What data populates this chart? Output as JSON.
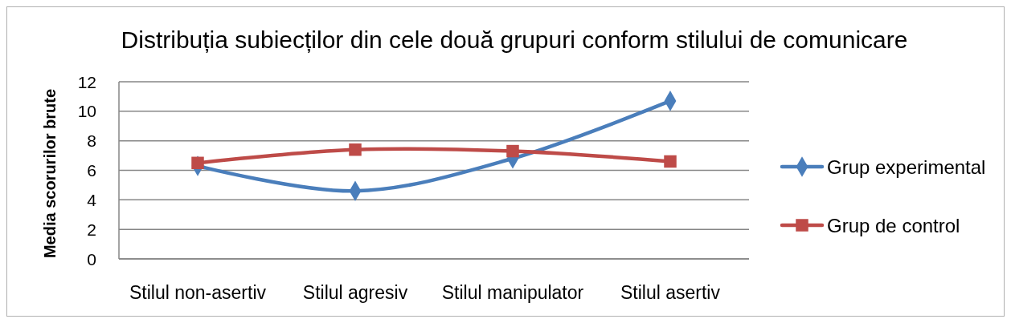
{
  "chart_data": {
    "type": "line",
    "title": "Distribuția subiecților din cele două grupuri conform stilului de comunicare",
    "ylabel": "Media scorurilor brute",
    "categories": [
      "Stilul non-asertiv",
      "Stilul agresiv",
      "Stilul manipulator",
      "Stilul asertiv"
    ],
    "series": [
      {
        "name": "Grup experimental",
        "color": "#4a7ebb",
        "marker": "diamond",
        "values": [
          6.3,
          4.6,
          6.8,
          10.7
        ]
      },
      {
        "name": "Grup de control",
        "color": "#be4b48",
        "marker": "square",
        "values": [
          6.5,
          7.4,
          7.3,
          6.6
        ]
      }
    ],
    "ylim": [
      0,
      12
    ],
    "yticks": [
      0,
      2,
      4,
      6,
      8,
      10,
      12
    ],
    "grid": "y",
    "legend": "right",
    "line_style": "solid"
  }
}
